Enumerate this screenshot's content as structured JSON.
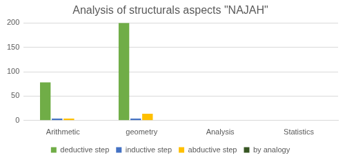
{
  "chart_data": {
    "type": "bar",
    "title": "Analysis of structurals aspects \"NAJAH\"",
    "categories": [
      "Arithmetic",
      "geometry",
      "Analysis",
      "Statistics"
    ],
    "series": [
      {
        "name": "deductive step",
        "color": "#70ad47",
        "values": [
          78,
          200,
          0,
          0
        ]
      },
      {
        "name": "inductive step",
        "color": "#4472c4",
        "values": [
          4,
          4,
          0,
          0
        ]
      },
      {
        "name": "abductive step",
        "color": "#ffc000",
        "values": [
          4,
          14,
          0,
          0
        ]
      },
      {
        "name": "by analogy",
        "color": "#375623",
        "values": [
          0,
          0,
          0,
          0
        ]
      }
    ],
    "ylim": [
      0,
      200
    ],
    "yticks": [
      0,
      50,
      100,
      150,
      200
    ],
    "grid": true,
    "legend": "bottom"
  }
}
